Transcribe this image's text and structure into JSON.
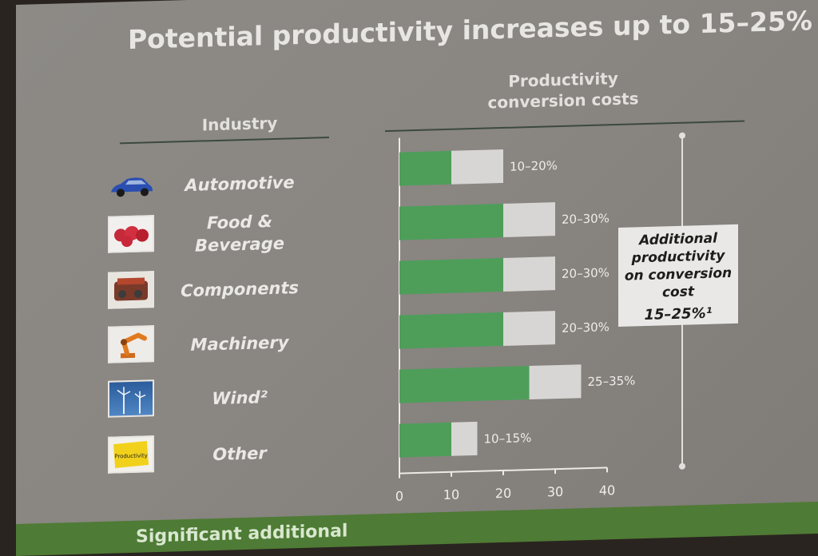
{
  "slide": {
    "title": "Potential productivity increases up to 15–25%",
    "industry_header": "Industry",
    "chart_header_line1": "Productivity",
    "chart_header_line2": "conversion costs",
    "bottom_text": "Significant additional",
    "callout": {
      "line1": "Additional",
      "line2": "productivity",
      "line3": "on conversion",
      "line4": "cost",
      "value": "15–25%¹"
    },
    "industries": [
      {
        "label": "Automotive",
        "icon": "car-icon"
      },
      {
        "label": "Food &\nBeverage",
        "icon": "apples-icon"
      },
      {
        "label": "Components",
        "icon": "engine-icon"
      },
      {
        "label": "Machinery",
        "icon": "robot-arm-icon"
      },
      {
        "label": "Wind²",
        "icon": "wind-turbine-icon"
      },
      {
        "label": "Other",
        "icon": "sticky-note-icon"
      }
    ],
    "sticky_note_text": "Productivity"
  },
  "colors": {
    "green": "#4e9e5a",
    "grey": "#d7d6d4",
    "band": "#4e7b35"
  },
  "chart_data": {
    "type": "bar",
    "orientation": "horizontal",
    "stacked": true,
    "categories": [
      "Automotive",
      "Food & Beverage",
      "Components",
      "Machinery",
      "Wind²",
      "Other"
    ],
    "series": [
      {
        "values": [
          10,
          20,
          20,
          20,
          25,
          10
        ]
      },
      {
        "values": [
          10,
          10,
          10,
          10,
          10,
          5
        ]
      }
    ],
    "data_labels": [
      "10–20%",
      "20–30%",
      "20–30%",
      "20–30%",
      "25–35%",
      "10–15%"
    ],
    "xlim": [
      0,
      40
    ],
    "xticks": [
      "0",
      "10",
      "20",
      "30",
      "40"
    ],
    "grid": false
  }
}
